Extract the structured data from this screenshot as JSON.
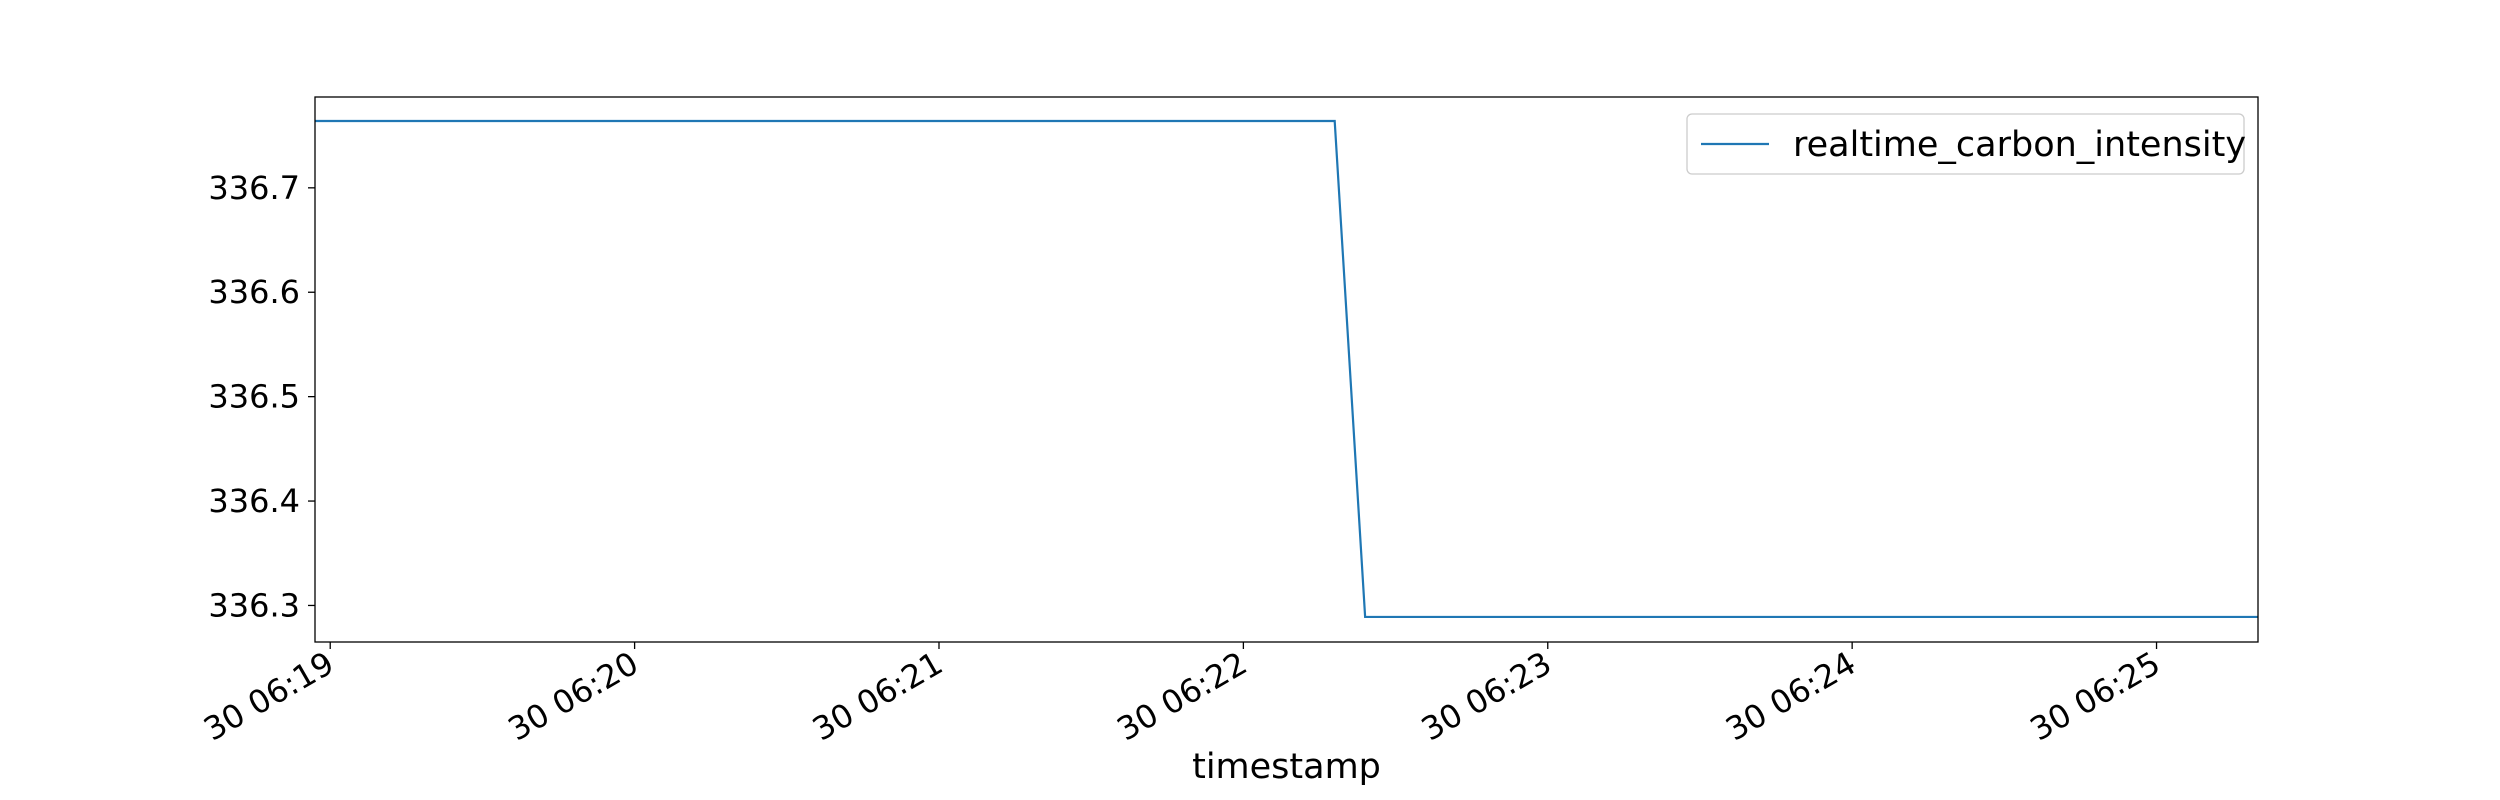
{
  "chart_data": {
    "type": "line",
    "title": "",
    "xlabel": "timestamp",
    "ylabel": "",
    "x_tick_labels": [
      "30 06:19",
      "30 06:20",
      "30 06:21",
      "30 06:22",
      "30 06:23",
      "30 06:24",
      "30 06:25"
    ],
    "y_tick_labels": [
      "336.3",
      "336.4",
      "336.5",
      "336.6",
      "336.7"
    ],
    "xlim": [
      "06:18:57",
      "06:25:20"
    ],
    "ylim": [
      336.265,
      336.787
    ],
    "grid": false,
    "legend": {
      "position": "upper-right"
    },
    "series": [
      {
        "name": "realtime_carbon_intensity",
        "color": "#1f77b4",
        "x": [
          "06:18:57",
          "06:22:18",
          "06:22:24",
          "06:25:20"
        ],
        "y": [
          336.764,
          336.764,
          336.289,
          336.289
        ]
      }
    ]
  }
}
